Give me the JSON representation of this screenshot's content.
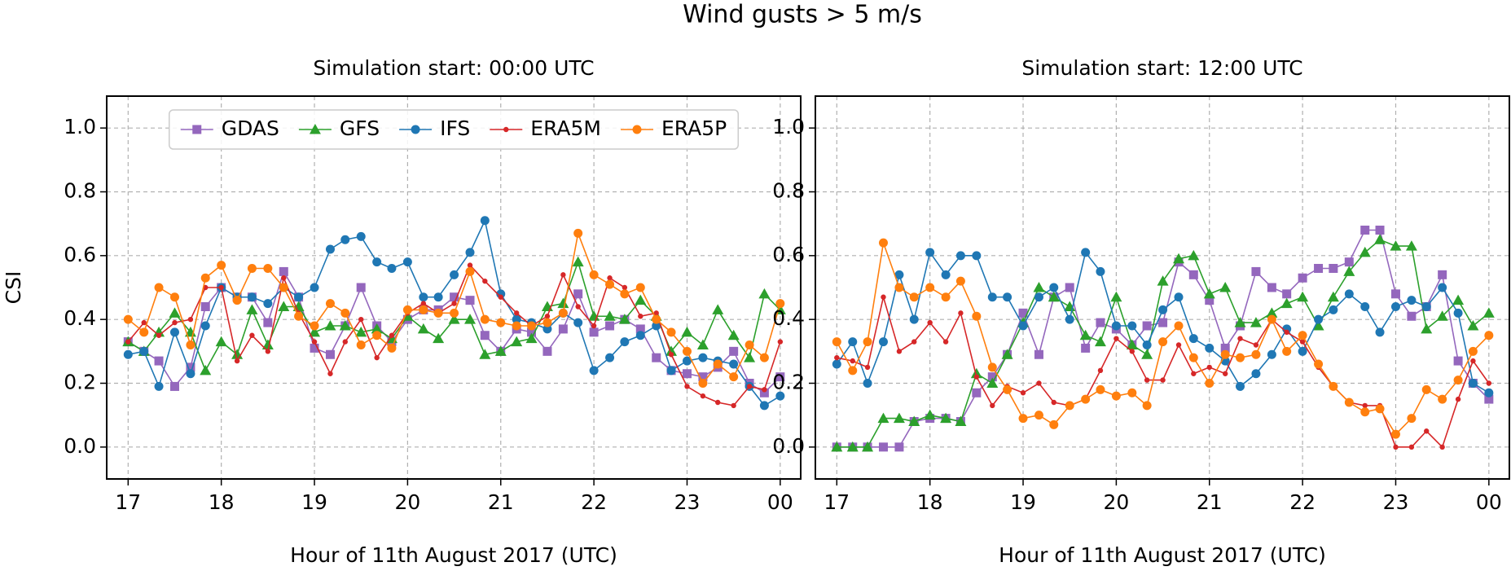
{
  "title": "Wind gusts > 5 m/s",
  "chart_data": [
    {
      "type": "line",
      "title": "Simulation start: 00:00 UTC",
      "xlabel": "Hour of 11th August 2017 (UTC)",
      "ylabel": "CSI",
      "x": [
        17,
        17.17,
        17.33,
        17.5,
        17.67,
        17.83,
        18,
        18.17,
        18.33,
        18.5,
        18.67,
        18.83,
        19,
        19.17,
        19.33,
        19.5,
        19.67,
        19.83,
        20,
        20.17,
        20.33,
        20.5,
        20.67,
        20.83,
        21,
        21.17,
        21.33,
        21.5,
        21.67,
        21.83,
        22,
        22.17,
        22.33,
        22.5,
        22.67,
        22.83,
        23,
        23.17,
        23.33,
        23.5,
        23.67,
        23.83,
        24
      ],
      "series": [
        {
          "name": "GDAS",
          "color": "#9467bd",
          "marker": "square",
          "values": [
            0.33,
            0.3,
            0.27,
            0.19,
            0.25,
            0.44,
            0.5,
            0.47,
            0.47,
            0.39,
            0.55,
            0.47,
            0.31,
            0.29,
            0.38,
            0.5,
            0.38,
            0.33,
            0.4,
            0.43,
            0.43,
            0.47,
            0.46,
            0.35,
            0.3,
            0.37,
            0.36,
            0.3,
            0.37,
            0.48,
            0.36,
            0.38,
            0.4,
            0.37,
            0.28,
            0.24,
            0.23,
            0.22,
            0.25,
            0.3,
            0.2,
            0.17,
            0.22
          ]
        },
        {
          "name": "GFS",
          "color": "#2ca02c",
          "marker": "triangle",
          "values": [
            0.33,
            0.3,
            0.36,
            0.42,
            0.36,
            0.24,
            0.33,
            0.29,
            0.43,
            0.32,
            0.44,
            0.44,
            0.36,
            0.38,
            0.38,
            0.36,
            0.37,
            0.34,
            0.41,
            0.37,
            0.34,
            0.4,
            0.4,
            0.29,
            0.3,
            0.33,
            0.34,
            0.44,
            0.45,
            0.58,
            0.41,
            0.41,
            0.4,
            0.46,
            0.41,
            0.3,
            0.36,
            0.32,
            0.43,
            0.35,
            0.28,
            0.48,
            0.43
          ]
        },
        {
          "name": "IFS",
          "color": "#1f77b4",
          "marker": "circle",
          "values": [
            0.29,
            0.3,
            0.19,
            0.36,
            0.23,
            0.38,
            0.5,
            0.47,
            0.47,
            0.45,
            0.5,
            0.47,
            0.5,
            0.62,
            0.65,
            0.66,
            0.58,
            0.56,
            0.58,
            0.47,
            0.47,
            0.54,
            0.61,
            0.71,
            0.48,
            0.4,
            0.39,
            0.37,
            0.42,
            0.39,
            0.24,
            0.28,
            0.33,
            0.35,
            0.38,
            0.24,
            0.27,
            0.28,
            0.27,
            0.26,
            0.19,
            0.13,
            0.16
          ]
        },
        {
          "name": "ERA5M",
          "color": "#d62728",
          "marker": "point",
          "values": [
            0.33,
            0.39,
            0.35,
            0.39,
            0.4,
            0.5,
            0.5,
            0.27,
            0.35,
            0.3,
            0.53,
            0.42,
            0.33,
            0.23,
            0.33,
            0.4,
            0.28,
            0.35,
            0.42,
            0.45,
            0.42,
            0.45,
            0.57,
            0.52,
            0.47,
            0.42,
            0.38,
            0.41,
            0.54,
            0.44,
            0.38,
            0.53,
            0.5,
            0.41,
            0.42,
            0.29,
            0.19,
            0.16,
            0.14,
            0.13,
            0.19,
            0.18,
            0.33
          ]
        },
        {
          "name": "ERA5P",
          "color": "#ff7f0e",
          "marker": "circle",
          "values": [
            0.4,
            0.36,
            0.5,
            0.47,
            0.32,
            0.53,
            0.57,
            0.46,
            0.56,
            0.56,
            0.5,
            0.41,
            0.38,
            0.45,
            0.42,
            0.32,
            0.35,
            0.31,
            0.43,
            0.43,
            0.42,
            0.42,
            0.55,
            0.4,
            0.39,
            0.38,
            0.38,
            0.39,
            0.42,
            0.67,
            0.54,
            0.51,
            0.48,
            0.5,
            0.4,
            0.36,
            0.3,
            0.2,
            0.26,
            0.22,
            0.32,
            0.28,
            0.45
          ]
        }
      ],
      "xlim": [
        16.77,
        24.22
      ],
      "ylim": [
        -0.1,
        1.1
      ],
      "xticks": [
        17,
        18,
        19,
        20,
        21,
        22,
        23,
        {
          "value": 24,
          "label": "00"
        }
      ],
      "yticks": [
        {
          "value": 0,
          "label": "0.0"
        },
        0.2,
        0.4,
        0.6,
        0.8,
        {
          "value": 1,
          "label": "1.0"
        }
      ],
      "grid": true,
      "legend": "upper center"
    },
    {
      "type": "line",
      "title": "Simulation start: 12:00 UTC",
      "xlabel": "Hour of 11th August 2017 (UTC)",
      "x": [
        17,
        17.17,
        17.33,
        17.5,
        17.67,
        17.83,
        18,
        18.17,
        18.33,
        18.5,
        18.67,
        18.83,
        19,
        19.17,
        19.33,
        19.5,
        19.67,
        19.83,
        20,
        20.17,
        20.33,
        20.5,
        20.67,
        20.83,
        21,
        21.17,
        21.33,
        21.5,
        21.67,
        21.83,
        22,
        22.17,
        22.33,
        22.5,
        22.67,
        22.83,
        23,
        23.17,
        23.33,
        23.5,
        23.67,
        23.83,
        24
      ],
      "series": [
        {
          "name": "GDAS",
          "color": "#9467bd",
          "marker": "square",
          "values": [
            0,
            0,
            0,
            0,
            0,
            0.08,
            0.09,
            0.09,
            0.08,
            0.17,
            0.22,
            0.29,
            0.42,
            0.29,
            0.47,
            0.5,
            0.31,
            0.39,
            0.37,
            0.32,
            0.38,
            0.39,
            0.58,
            0.54,
            0.46,
            0.31,
            0.38,
            0.55,
            0.5,
            0.48,
            0.53,
            0.56,
            0.56,
            0.58,
            0.68,
            0.68,
            0.48,
            0.41,
            0.44,
            0.54,
            0.27,
            0.2,
            0.15
          ]
        },
        {
          "name": "GFS",
          "color": "#2ca02c",
          "marker": "triangle",
          "values": [
            0,
            0,
            0,
            0.09,
            0.09,
            0.08,
            0.1,
            0.09,
            0.08,
            0.23,
            0.2,
            0.29,
            0.39,
            0.5,
            0.47,
            0.44,
            0.35,
            0.33,
            0.47,
            0.32,
            0.29,
            0.52,
            0.59,
            0.6,
            0.48,
            0.5,
            0.39,
            0.39,
            0.42,
            0.45,
            0.47,
            0.38,
            0.47,
            0.55,
            0.61,
            0.65,
            0.63,
            0.63,
            0.37,
            0.41,
            0.46,
            0.38,
            0.42
          ]
        },
        {
          "name": "IFS",
          "color": "#1f77b4",
          "marker": "circle",
          "values": [
            0.26,
            0.33,
            0.2,
            0.33,
            0.54,
            0.4,
            0.61,
            0.54,
            0.6,
            0.6,
            0.47,
            0.47,
            0.38,
            0.47,
            0.5,
            0.4,
            0.61,
            0.55,
            0.38,
            0.38,
            0.32,
            0.43,
            0.47,
            0.34,
            0.31,
            0.27,
            0.19,
            0.23,
            0.29,
            0.37,
            0.3,
            0.4,
            0.43,
            0.48,
            0.44,
            0.36,
            0.44,
            0.46,
            0.44,
            0.5,
            0.42,
            0.2,
            0.17
          ]
        },
        {
          "name": "ERA5M",
          "color": "#d62728",
          "marker": "point",
          "values": [
            0.28,
            0.27,
            0.25,
            0.47,
            0.3,
            0.33,
            0.39,
            0.33,
            0.42,
            0.22,
            0.13,
            0.19,
            0.17,
            0.2,
            0.14,
            0.13,
            0.15,
            0.24,
            0.34,
            0.3,
            0.21,
            0.21,
            0.32,
            0.23,
            0.25,
            0.23,
            0.34,
            0.32,
            0.4,
            0.36,
            0.33,
            0.25,
            0.19,
            0.14,
            0.13,
            0.13,
            0,
            0,
            0.05,
            0,
            0.15,
            0.27,
            0.2
          ]
        },
        {
          "name": "ERA5P",
          "color": "#ff7f0e",
          "marker": "circle",
          "values": [
            0.33,
            0.24,
            0.33,
            0.64,
            0.5,
            0.47,
            0.5,
            0.47,
            0.52,
            0.41,
            0.25,
            0.18,
            0.09,
            0.1,
            0.07,
            0.13,
            0.15,
            0.18,
            0.16,
            0.17,
            0.13,
            0.33,
            0.38,
            0.28,
            0.2,
            0.29,
            0.28,
            0.29,
            0.4,
            0.3,
            0.35,
            0.26,
            0.19,
            0.14,
            0.11,
            0.12,
            0.04,
            0.09,
            0.18,
            0.15,
            0.21,
            0.3,
            0.35
          ]
        }
      ],
      "xlim": [
        16.77,
        24.22
      ],
      "ylim": [
        -0.1,
        1.1
      ],
      "xticks": [
        17,
        18,
        19,
        20,
        21,
        22,
        23,
        {
          "value": 24,
          "label": "00"
        }
      ],
      "yticks": [
        {
          "value": 0,
          "label": "0.0"
        },
        0.2,
        0.4,
        0.6,
        0.8,
        {
          "value": 1,
          "label": "1.0"
        }
      ],
      "grid": true
    }
  ]
}
